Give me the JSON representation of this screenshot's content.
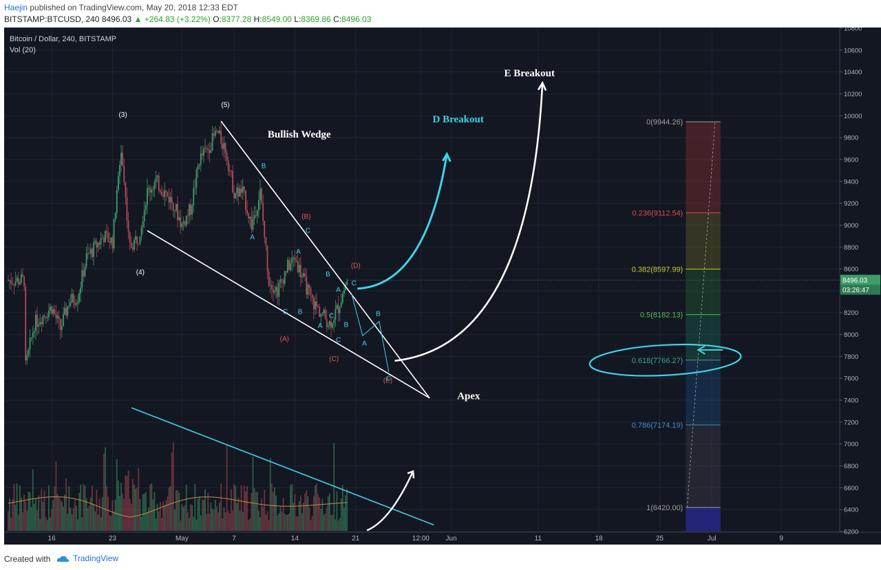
{
  "header": {
    "author": "Haejin",
    "published_text": "published on TradingView.com, May 20, 2018 12:33 EDT",
    "symbol": "BITSTAMP:BTCUSD, 240",
    "last": "8496.03",
    "change": "▲ +264.83 (+3.22%)",
    "o_label": "O:",
    "o": "8377.28",
    "h_label": "H:",
    "h": "8549.00",
    "l_label": "L:",
    "l": "8369.86",
    "c_label": "C:",
    "c": "8496.03"
  },
  "footer": {
    "created_with": "Created with",
    "brand": "TradingView"
  },
  "colors": {
    "bg": "#131722",
    "grid": "#1f2433",
    "up": "#3e9c6a",
    "down": "#b54a57",
    "annot_white": "#ffffff",
    "annot_cyan": "#3fd2e8",
    "wave_red": "#e05555"
  },
  "chart_data": {
    "type": "candlestick",
    "title": "Bitcoin / Dollar, 240, BITSTAMP",
    "indicator": "Vol (20)",
    "ylim": [
      6200,
      10800
    ],
    "y_ticks": [
      6200,
      6400,
      6600,
      6800,
      7000,
      7200,
      7400,
      7600,
      7800,
      8000,
      8200,
      8400,
      8600,
      8800,
      9000,
      9200,
      9400,
      9600,
      9800,
      10000,
      10200,
      10400,
      10600,
      10800
    ],
    "x_ticks": [
      "16",
      "23",
      "May",
      "7",
      "14",
      "21",
      "12:00",
      "Jun",
      "11",
      "18",
      "25",
      "Jul",
      "9"
    ],
    "price_tags": {
      "last": "8496.03",
      "countdown": "03:26:47"
    },
    "price_path_keypoints": [
      {
        "x": "Apr 13",
        "y": 7700
      },
      {
        "x": "Apr 14",
        "y": 8100
      },
      {
        "x": "Apr 16",
        "y": 8250
      },
      {
        "x": "Apr 17",
        "y": 8050
      },
      {
        "x": "Apr 18",
        "y": 8300
      },
      {
        "x": "Apr 19",
        "y": 8350
      },
      {
        "x": "Apr 20",
        "y": 8700
      },
      {
        "x": "Apr 21",
        "y": 8800
      },
      {
        "x": "Apr 22",
        "y": 8900
      },
      {
        "x": "Apr 23",
        "y": 8850
      },
      {
        "x": "Apr 24",
        "y": 9700
      },
      {
        "x": "Apr 25",
        "y": 8800
      },
      {
        "x": "Apr 26",
        "y": 8900
      },
      {
        "x": "Apr 27",
        "y": 9300
      },
      {
        "x": "Apr 28",
        "y": 9400
      },
      {
        "x": "Apr 29",
        "y": 9300
      },
      {
        "x": "Apr 30",
        "y": 9200
      },
      {
        "x": "May 1",
        "y": 9000
      },
      {
        "x": "May 2",
        "y": 9150
      },
      {
        "x": "May 3",
        "y": 9600
      },
      {
        "x": "May 4",
        "y": 9700
      },
      {
        "x": "May 5",
        "y": 9850
      },
      {
        "x": "May 6",
        "y": 9700
      },
      {
        "x": "May 7",
        "y": 9300
      },
      {
        "x": "May 8",
        "y": 9300
      },
      {
        "x": "May 9",
        "y": 9000
      },
      {
        "x": "May 10",
        "y": 9300
      },
      {
        "x": "May 11",
        "y": 8500
      },
      {
        "x": "May 12",
        "y": 8400
      },
      {
        "x": "May 13",
        "y": 8600
      },
      {
        "x": "May 14",
        "y": 8700
      },
      {
        "x": "May 15",
        "y": 8500
      },
      {
        "x": "May 16",
        "y": 8300
      },
      {
        "x": "May 17",
        "y": 8200
      },
      {
        "x": "May 18",
        "y": 8100
      },
      {
        "x": "May 19",
        "y": 8250
      },
      {
        "x": "May 20",
        "y": 8496
      }
    ],
    "fibonacci": [
      {
        "label": "0(9944.26)",
        "price": 9944.26,
        "color": "#9e9e9e"
      },
      {
        "label": "0.236(9112.54)",
        "price": 9112.54,
        "color": "#e04848"
      },
      {
        "label": "0.382(8597.99)",
        "price": 8597.99,
        "color": "#c8c830"
      },
      {
        "label": "0.5(8182.13)",
        "price": 8182.13,
        "color": "#55c050"
      },
      {
        "label": "0.618(7766.27)",
        "price": 7766.27,
        "color": "#3aa58f"
      },
      {
        "label": "0.786(7174.19)",
        "price": 7174.19,
        "color": "#3a8fd0"
      },
      {
        "label": "1(6420.00)",
        "price": 6420.0,
        "color": "#9e9e9e"
      }
    ],
    "annotations": {
      "bullish_wedge": "Bullish Wedge",
      "d_breakout": "D Breakout",
      "e_breakout": "E Breakout",
      "apex": "Apex",
      "wave_3": "(3)",
      "wave_4": "(4)",
      "wave_5": "(5)",
      "wave_a": "(A)",
      "wave_b": "(B)",
      "wave_c": "(C)",
      "wave_d": "(D)",
      "wave_e": "(E)",
      "sub_a": "A",
      "sub_b": "B",
      "sub_c": "C"
    }
  }
}
